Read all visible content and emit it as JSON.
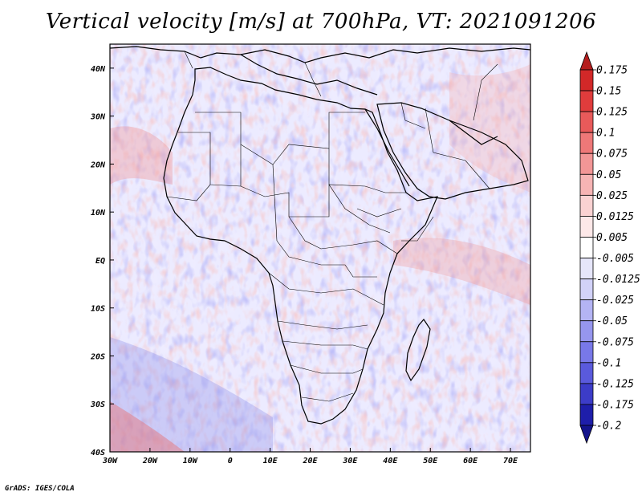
{
  "title": "Vertical velocity [m/s] at 700hPa, VT: 2021091206",
  "credit": "GrADS: IGES/COLA",
  "map": {
    "lon_range": [
      -30,
      75
    ],
    "lat_range": [
      -40,
      45
    ],
    "x_ticks": [
      "30W",
      "20W",
      "10W",
      "0",
      "10E",
      "20E",
      "30E",
      "40E",
      "50E",
      "60E",
      "70E"
    ],
    "y_ticks": [
      "40N",
      "30N",
      "20N",
      "10N",
      "EQ",
      "10S",
      "20S",
      "30S",
      "40S"
    ]
  },
  "colorbar": {
    "labels": [
      "0.175",
      "0.15",
      "0.125",
      "0.1",
      "0.075",
      "0.05",
      "0.025",
      "0.0125",
      "0.005",
      "-0.005",
      "-0.0125",
      "-0.025",
      "-0.05",
      "-0.075",
      "-0.1",
      "-0.125",
      "-0.175",
      "-0.2"
    ],
    "colors": [
      "#b41e1e",
      "#d22828",
      "#e03c3c",
      "#e85a5a",
      "#ee7878",
      "#f29696",
      "#f6b4b4",
      "#fad2d2",
      "#fde8e8",
      "#ffffff",
      "#e6e6fa",
      "#d2d2f8",
      "#b4b4f4",
      "#9696ee",
      "#7878e8",
      "#5a5adc",
      "#3c3cc8",
      "#1e1eaa",
      "#14148c"
    ]
  }
}
